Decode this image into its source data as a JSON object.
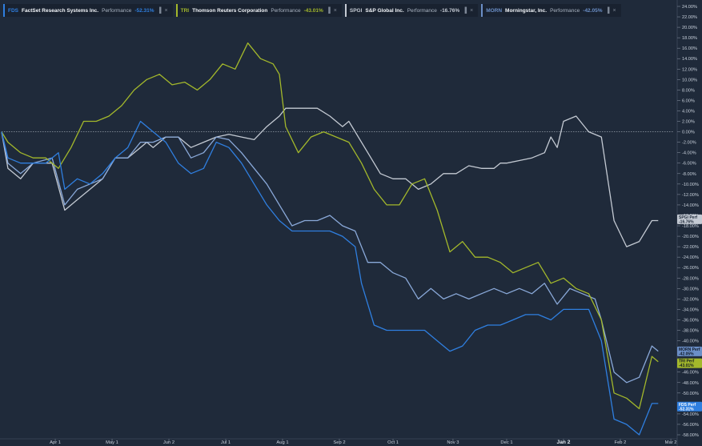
{
  "legend": [
    {
      "ticker": "FDS",
      "name": "FactSet Research Systems Inc.",
      "metric": "Performance",
      "value": "-52.31%",
      "color": "#2f7fe0"
    },
    {
      "ticker": "TRI",
      "name": "Thomson Reuters Corporation",
      "metric": "Performance",
      "value": "-43.01%",
      "color": "#a3b82b"
    },
    {
      "ticker": "SPGI",
      "name": "S&P Global Inc.",
      "metric": "Performance",
      "value": "-16.76%",
      "color": "#c4cad3"
    },
    {
      "ticker": "MORN",
      "name": "Morningstar, Inc.",
      "metric": "Performance",
      "value": "-42.05%",
      "color": "#6b8fc7"
    }
  ],
  "legend_icons": {
    "chart": "bar-chart-icon",
    "close": "close-icon"
  },
  "end_labels": [
    {
      "ticker": "SPGI",
      "lines": [
        "SPGI Perf",
        "-16.76%"
      ],
      "y": -16.76,
      "bg": "#c4cad3",
      "fg": "#1f2a3a"
    },
    {
      "ticker": "MORN",
      "lines": [
        "MORN Perf",
        "-42.05%"
      ],
      "y": -42.05,
      "bg": "#6b8fc7",
      "fg": "#0f1724"
    },
    {
      "ticker": "TRI",
      "lines": [
        "TRI Perf",
        "-43.01%"
      ],
      "y": -44.3,
      "bg": "#a3b82b",
      "fg": "#0f1724"
    },
    {
      "ticker": "FDS",
      "lines": [
        "FDS Perf",
        "-52.31%"
      ],
      "y": -52.6,
      "bg": "#2f7fe0",
      "fg": "#ffffff"
    }
  ],
  "chart_data": {
    "type": "line",
    "ylim": [
      -58,
      24
    ],
    "y_ticks": [
      24,
      22,
      20,
      18,
      16,
      14,
      12,
      10,
      8,
      6,
      4,
      2,
      0,
      -2,
      -4,
      -6,
      -8,
      -10,
      -12,
      -14,
      -16,
      -18,
      -20,
      -22,
      -24,
      -26,
      -28,
      -30,
      -32,
      -34,
      -36,
      -38,
      -40,
      -42,
      -44,
      -46,
      -48,
      -50,
      -52,
      -54,
      -56,
      -58
    ],
    "y_tick_labels": [
      "24.00%",
      "22.00%",
      "20.00%",
      "18.00%",
      "16.00%",
      "14.00%",
      "12.00%",
      "10.00%",
      "8.00%",
      "6.00%",
      "4.00%",
      "2.00%",
      "0.00%",
      "-2.00%",
      "-4.00%",
      "-6.00%",
      "-8.00%",
      "-10.00%",
      "-12.00%",
      "-14.00%",
      "-16.00%",
      "-18.00%",
      "-20.00%",
      "-22.00%",
      "-24.00%",
      "-26.00%",
      "-28.00%",
      "-30.00%",
      "-32.00%",
      "-34.00%",
      "-36.00%",
      "-38.00%",
      "-40.00%",
      "-42.00%",
      "-44.00%",
      "-46.00%",
      "-48.00%",
      "-50.00%",
      "-52.00%",
      "-54.00%",
      "-56.00%",
      "-58.00%"
    ],
    "x_ticks": [
      {
        "label": "Apr 1",
        "x": 8.5
      },
      {
        "label": "May 1",
        "x": 17.5
      },
      {
        "label": "Jun 2",
        "x": 26.5
      },
      {
        "label": "Jul 1",
        "x": 35.5
      },
      {
        "label": "Aug 1",
        "x": 44.5
      },
      {
        "label": "Sep 2",
        "x": 53.5
      },
      {
        "label": "Oct 1",
        "x": 62
      },
      {
        "label": "Nov 3",
        "x": 71.5
      },
      {
        "label": "Dec 1",
        "x": 80
      },
      {
        "label": "Jan 2",
        "x": 89,
        "bold": true
      },
      {
        "label": "Feb 2",
        "x": 98
      },
      {
        "label": "Mar 2",
        "x": 106
      }
    ],
    "xlim": [
      0,
      106.5
    ],
    "baseline": 0,
    "series": [
      {
        "name": "SPGI",
        "color": "#c4cad3",
        "points": [
          [
            0,
            0
          ],
          [
            1,
            -7
          ],
          [
            3,
            -9
          ],
          [
            5,
            -6
          ],
          [
            8,
            -6
          ],
          [
            10,
            -15
          ],
          [
            12,
            -13
          ],
          [
            14,
            -11
          ],
          [
            16,
            -9
          ],
          [
            18,
            -5
          ],
          [
            20,
            -5
          ],
          [
            22,
            -3
          ],
          [
            23,
            -2
          ],
          [
            24,
            -3
          ],
          [
            26,
            -1
          ],
          [
            28,
            -1
          ],
          [
            30,
            -3
          ],
          [
            32,
            -2
          ],
          [
            34,
            -1
          ],
          [
            36,
            -0.5
          ],
          [
            38,
            -1
          ],
          [
            40,
            -1.5
          ],
          [
            42,
            1
          ],
          [
            44,
            3
          ],
          [
            45,
            4.5
          ],
          [
            48,
            4.5
          ],
          [
            50,
            4.5
          ],
          [
            52,
            3
          ],
          [
            54,
            1
          ],
          [
            55,
            2
          ],
          [
            58,
            -4
          ],
          [
            60,
            -8
          ],
          [
            62,
            -9
          ],
          [
            64,
            -9
          ],
          [
            66,
            -11
          ],
          [
            68,
            -10
          ],
          [
            70,
            -8
          ],
          [
            72,
            -8
          ],
          [
            74,
            -6.5
          ],
          [
            76,
            -7
          ],
          [
            78,
            -7
          ],
          [
            79,
            -6
          ],
          [
            80,
            -6
          ],
          [
            82,
            -5.5
          ],
          [
            84,
            -5
          ],
          [
            86,
            -4
          ],
          [
            87,
            -1
          ],
          [
            88,
            -3
          ],
          [
            89,
            2
          ],
          [
            91,
            3
          ],
          [
            93,
            0
          ],
          [
            95,
            -1
          ],
          [
            97,
            -17
          ],
          [
            99,
            -22
          ],
          [
            101,
            -21
          ],
          [
            103,
            -17
          ],
          [
            104,
            -17
          ]
        ]
      },
      {
        "name": "MORN",
        "color": "#8aa9d9",
        "points": [
          [
            0,
            0
          ],
          [
            1,
            -6
          ],
          [
            3,
            -8
          ],
          [
            5,
            -6
          ],
          [
            8,
            -5
          ],
          [
            10,
            -14
          ],
          [
            12,
            -11
          ],
          [
            14,
            -10
          ],
          [
            16,
            -9
          ],
          [
            18,
            -5
          ],
          [
            20,
            -5
          ],
          [
            22,
            -2
          ],
          [
            23,
            -2
          ],
          [
            24,
            -2
          ],
          [
            26,
            -1
          ],
          [
            28,
            -1
          ],
          [
            30,
            -5
          ],
          [
            32,
            -4
          ],
          [
            34,
            -1
          ],
          [
            36,
            -1.5
          ],
          [
            38,
            -4
          ],
          [
            40,
            -7
          ],
          [
            42,
            -10
          ],
          [
            44,
            -14
          ],
          [
            46,
            -18
          ],
          [
            48,
            -17
          ],
          [
            50,
            -17
          ],
          [
            52,
            -16
          ],
          [
            54,
            -18
          ],
          [
            56,
            -19
          ],
          [
            58,
            -25
          ],
          [
            60,
            -25
          ],
          [
            62,
            -27
          ],
          [
            64,
            -28
          ],
          [
            66,
            -32
          ],
          [
            68,
            -30
          ],
          [
            70,
            -32
          ],
          [
            72,
            -31
          ],
          [
            74,
            -32
          ],
          [
            76,
            -31
          ],
          [
            78,
            -30
          ],
          [
            80,
            -31
          ],
          [
            82,
            -30
          ],
          [
            84,
            -31
          ],
          [
            86,
            -29
          ],
          [
            88,
            -33
          ],
          [
            90,
            -30
          ],
          [
            92,
            -31
          ],
          [
            94,
            -32
          ],
          [
            95,
            -36
          ],
          [
            97,
            -46
          ],
          [
            99,
            -48
          ],
          [
            101,
            -47
          ],
          [
            103,
            -41
          ],
          [
            104,
            -42
          ]
        ]
      },
      {
        "name": "TRI",
        "color": "#a3b82b",
        "points": [
          [
            0,
            0
          ],
          [
            1,
            -2
          ],
          [
            3,
            -4
          ],
          [
            5,
            -5
          ],
          [
            7,
            -5
          ],
          [
            9,
            -7
          ],
          [
            11,
            -3
          ],
          [
            13,
            2
          ],
          [
            15,
            2
          ],
          [
            17,
            3
          ],
          [
            19,
            5
          ],
          [
            21,
            8
          ],
          [
            23,
            10
          ],
          [
            25,
            11
          ],
          [
            27,
            9
          ],
          [
            29,
            9.5
          ],
          [
            31,
            8
          ],
          [
            33,
            10
          ],
          [
            35,
            13
          ],
          [
            37,
            12
          ],
          [
            39,
            17
          ],
          [
            41,
            14
          ],
          [
            43,
            13
          ],
          [
            44,
            11
          ],
          [
            45,
            1
          ],
          [
            47,
            -4
          ],
          [
            49,
            -1
          ],
          [
            51,
            0
          ],
          [
            53,
            -1
          ],
          [
            55,
            -2
          ],
          [
            57,
            -6
          ],
          [
            59,
            -11
          ],
          [
            61,
            -14
          ],
          [
            63,
            -14
          ],
          [
            65,
            -10
          ],
          [
            67,
            -9
          ],
          [
            69,
            -15
          ],
          [
            71,
            -23
          ],
          [
            73,
            -21
          ],
          [
            75,
            -24
          ],
          [
            77,
            -24
          ],
          [
            79,
            -25
          ],
          [
            81,
            -27
          ],
          [
            83,
            -26
          ],
          [
            85,
            -25
          ],
          [
            87,
            -29
          ],
          [
            89,
            -28
          ],
          [
            91,
            -30
          ],
          [
            93,
            -31
          ],
          [
            95,
            -36
          ],
          [
            97,
            -50
          ],
          [
            99,
            -51
          ],
          [
            101,
            -53
          ],
          [
            103,
            -43
          ],
          [
            104,
            -44
          ]
        ]
      },
      {
        "name": "FDS",
        "color": "#2f7fe0",
        "points": [
          [
            0,
            0
          ],
          [
            1,
            -5
          ],
          [
            3,
            -6
          ],
          [
            5,
            -6
          ],
          [
            7,
            -6
          ],
          [
            9,
            -4
          ],
          [
            10,
            -11
          ],
          [
            12,
            -9
          ],
          [
            14,
            -10
          ],
          [
            16,
            -8
          ],
          [
            18,
            -5
          ],
          [
            20,
            -3
          ],
          [
            22,
            2
          ],
          [
            24,
            0
          ],
          [
            26,
            -2
          ],
          [
            28,
            -6
          ],
          [
            30,
            -8
          ],
          [
            32,
            -7
          ],
          [
            34,
            -2
          ],
          [
            36,
            -3
          ],
          [
            38,
            -6
          ],
          [
            40,
            -10
          ],
          [
            42,
            -14
          ],
          [
            44,
            -17
          ],
          [
            46,
            -19
          ],
          [
            48,
            -19
          ],
          [
            50,
            -19
          ],
          [
            52,
            -19
          ],
          [
            54,
            -20
          ],
          [
            56,
            -22
          ],
          [
            57,
            -29
          ],
          [
            59,
            -37
          ],
          [
            61,
            -38
          ],
          [
            63,
            -38
          ],
          [
            65,
            -38
          ],
          [
            67,
            -38
          ],
          [
            69,
            -40
          ],
          [
            71,
            -42
          ],
          [
            73,
            -41
          ],
          [
            75,
            -38
          ],
          [
            77,
            -37
          ],
          [
            79,
            -37
          ],
          [
            81,
            -36
          ],
          [
            83,
            -35
          ],
          [
            85,
            -35
          ],
          [
            87,
            -36
          ],
          [
            89,
            -34
          ],
          [
            91,
            -34
          ],
          [
            93,
            -34
          ],
          [
            95,
            -40
          ],
          [
            97,
            -55
          ],
          [
            99,
            -56
          ],
          [
            101,
            -58
          ],
          [
            103,
            -52
          ],
          [
            104,
            -52
          ]
        ]
      }
    ]
  }
}
